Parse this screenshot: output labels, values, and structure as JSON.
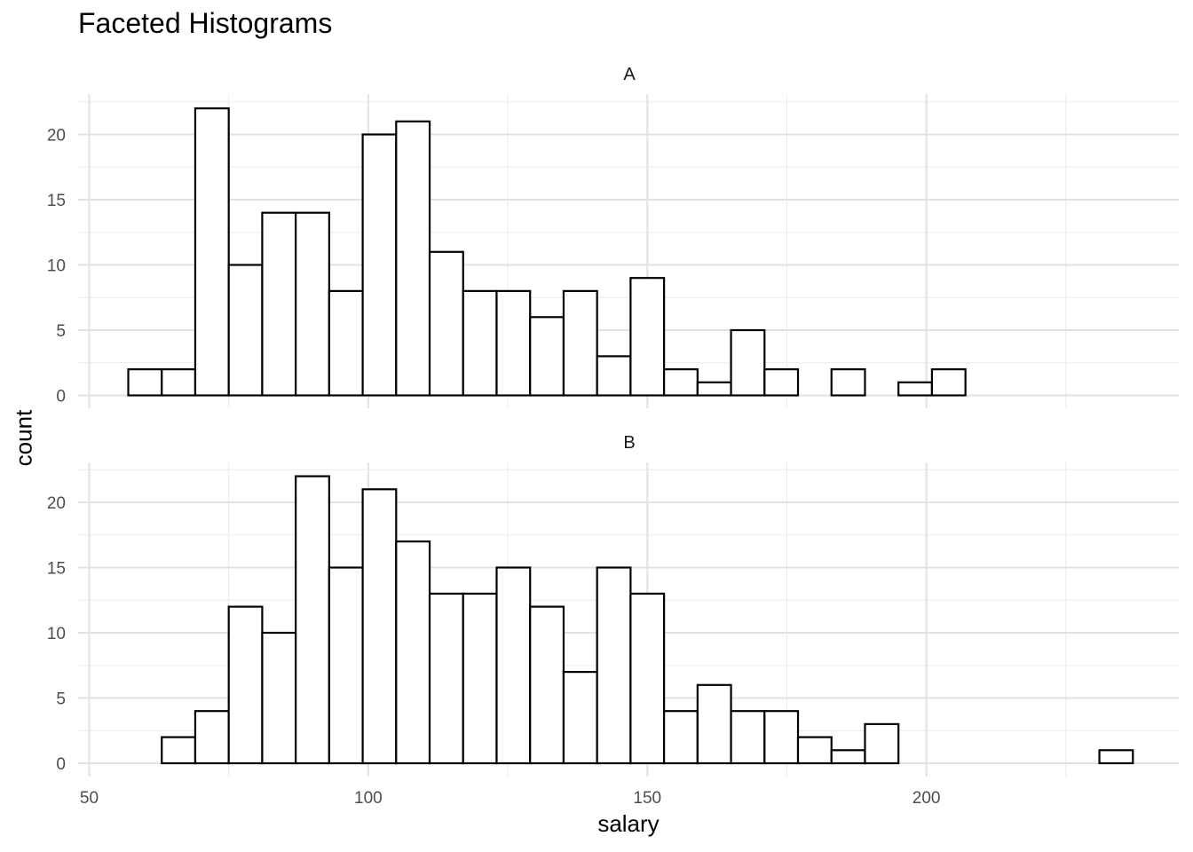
{
  "chart_data": {
    "type": "histogram",
    "title": "Faceted Histograms",
    "xlabel": "salary",
    "ylabel": "count",
    "xlim": [
      50,
      240
    ],
    "ylim": [
      0,
      23
    ],
    "x_ticks": [
      50,
      100,
      150,
      200
    ],
    "y_ticks": [
      0,
      5,
      10,
      15,
      20
    ],
    "grid": true,
    "bins": {
      "start": 57,
      "width": 6
    },
    "facets": [
      {
        "label": "A",
        "counts": [
          2,
          2,
          22,
          10,
          14,
          14,
          8,
          20,
          21,
          11,
          8,
          8,
          6,
          8,
          3,
          9,
          2,
          1,
          5,
          2,
          0,
          2,
          0,
          1,
          2,
          0,
          0,
          0,
          0,
          0
        ]
      },
      {
        "label": "B",
        "counts": [
          0,
          2,
          4,
          12,
          10,
          22,
          15,
          21,
          17,
          13,
          13,
          15,
          12,
          7,
          15,
          13,
          4,
          6,
          4,
          4,
          2,
          1,
          3,
          0,
          0,
          0,
          0,
          0,
          0,
          1
        ]
      }
    ]
  }
}
